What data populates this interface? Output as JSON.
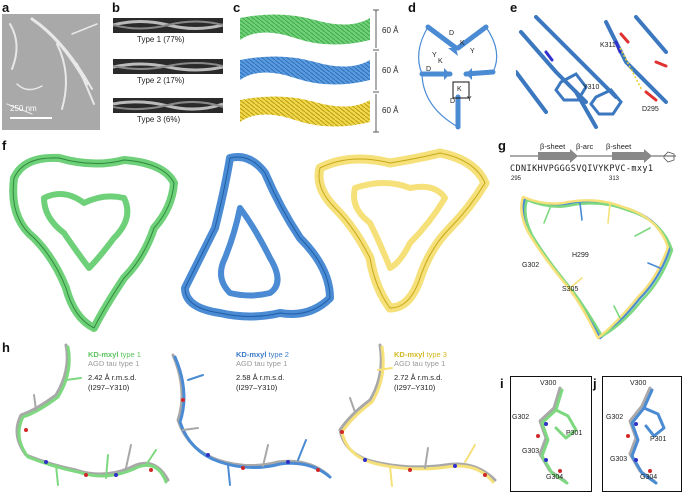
{
  "panels": {
    "a": {
      "label": "a",
      "scalebar": "250 nm"
    },
    "b": {
      "label": "b",
      "types": [
        "Type 1 (77%)",
        "Type 2 (17%)",
        "Type 3 (6%)"
      ]
    },
    "c": {
      "label": "c",
      "pitch": [
        "60 Å",
        "60 Å",
        "60 Å"
      ]
    },
    "d": {
      "label": "d",
      "residues": [
        "K",
        "D",
        "Y",
        "D",
        "K",
        "Y",
        "K",
        "Y",
        "D"
      ]
    },
    "e": {
      "label": "e",
      "residues": [
        "K311",
        "Y310",
        "D295"
      ]
    },
    "f": {
      "label": "f"
    },
    "g": {
      "label": "g",
      "ss": [
        "β-sheet",
        "β-arc",
        "β-sheet"
      ],
      "sequence": "CDNIKHVPGGGSVQIVYKPVC-mxy1",
      "num_left": "295",
      "num_right": "313",
      "residues": [
        "G302",
        "H299",
        "S305"
      ]
    },
    "h": {
      "label": "h",
      "legends": [
        {
          "mxyl": "KD-mxyl",
          "type": " type 1",
          "agd": "AGD tau type 1",
          "rmsd": "2.42 Å r.m.s.d.",
          "range": "(I297–Y310)"
        },
        {
          "mxyl": "KD-mxyl",
          "type": " type 2",
          "agd": "AGD tau type 1",
          "rmsd": "2.58 Å r.m.s.d.",
          "range": "(I297–Y310)"
        },
        {
          "mxyl": "KD-mxyl",
          "type": " type 3",
          "agd": "AGD tau type 1",
          "rmsd": "2.72 Å r.m.s.d.",
          "range": "(I297–Y310)"
        }
      ]
    },
    "i": {
      "label": "i",
      "residues": [
        "V300",
        "G302",
        "P301",
        "G303",
        "G304"
      ]
    },
    "j": {
      "label": "j",
      "residues": [
        "V300",
        "G302",
        "P301",
        "G303",
        "G304"
      ]
    }
  },
  "colors": {
    "green": "#7dd87f",
    "blue": "#4a8bd4",
    "yellow": "#f5e07a",
    "grey": "#a8a8a8"
  }
}
